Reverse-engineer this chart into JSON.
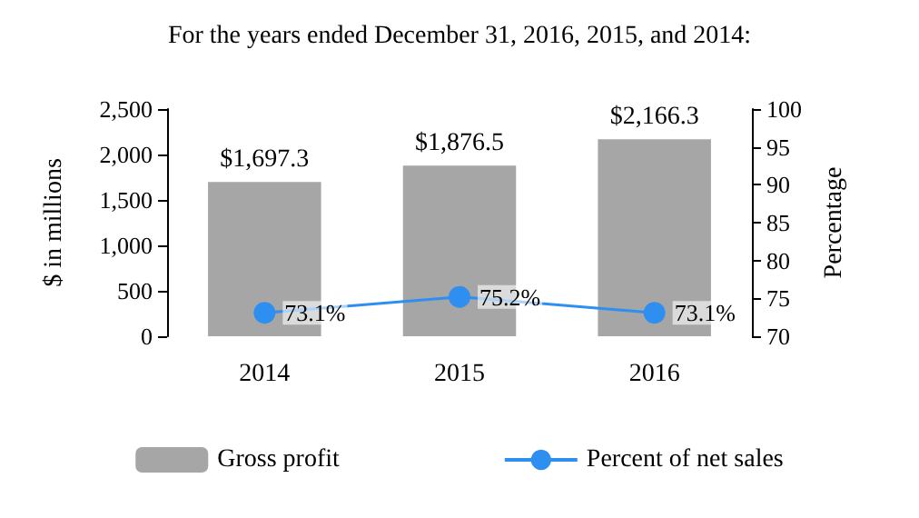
{
  "chart_data": {
    "type": "bar",
    "title": "For the years ended December 31, 2016, 2015, and 2014:",
    "ylabel": "$ in millions",
    "y2label": "Percentage",
    "categories": [
      "2014",
      "2015",
      "2016"
    ],
    "series": [
      {
        "name": "Gross profit",
        "color": "#a6a6a6",
        "values": [
          1697.3,
          1876.5,
          2166.3
        ],
        "value_labels": [
          "$1,697.3",
          "$1,876.5",
          "$2,166.3"
        ]
      },
      {
        "name": "Percent of net sales",
        "type": "line",
        "axis": "y2",
        "color": "#2f8ff0",
        "marker": "circle",
        "values": [
          73.1,
          75.2,
          73.1
        ],
        "value_labels": [
          "73.1%",
          "75.2%",
          "73.1%"
        ]
      }
    ],
    "ylim": [
      0,
      2500
    ],
    "yticks": [
      0,
      500,
      {
        "value": 1000,
        "label": "1,000"
      },
      {
        "value": 1500,
        "label": "1,500"
      },
      {
        "value": 2000,
        "label": "2,000"
      },
      {
        "value": 2500,
        "label": "2,500"
      }
    ],
    "y2lim": [
      70,
      100
    ],
    "y2ticks": [
      70,
      75,
      80,
      85,
      90,
      95,
      100
    ],
    "grid": false,
    "legend": "bottom"
  }
}
